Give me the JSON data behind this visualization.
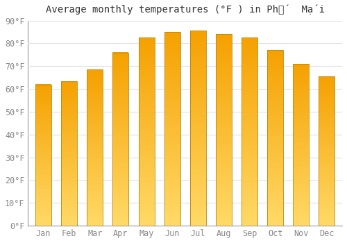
{
  "title": "Average monthly temperatures (°F ) in Phố́  Mạ́i",
  "months": [
    "Jan",
    "Feb",
    "Mar",
    "Apr",
    "May",
    "Jun",
    "Jul",
    "Aug",
    "Sep",
    "Oct",
    "Nov",
    "Dec"
  ],
  "values": [
    62,
    63.5,
    68.5,
    76,
    82.5,
    85,
    85.5,
    84,
    82.5,
    77,
    71,
    65.5
  ],
  "bar_color_top": "#F5A000",
  "bar_color_bottom": "#FFD966",
  "bar_edge_color": "#B8860B",
  "ylim": [
    0,
    90
  ],
  "yticks": [
    0,
    10,
    20,
    30,
    40,
    50,
    60,
    70,
    80,
    90
  ],
  "ytick_labels": [
    "0°F",
    "10°F",
    "20°F",
    "30°F",
    "40°F",
    "50°F",
    "60°F",
    "70°F",
    "80°F",
    "90°F"
  ],
  "background_color": "#ffffff",
  "grid_color": "#e0e0e0",
  "title_fontsize": 10,
  "tick_fontsize": 8.5,
  "bar_width": 0.62
}
